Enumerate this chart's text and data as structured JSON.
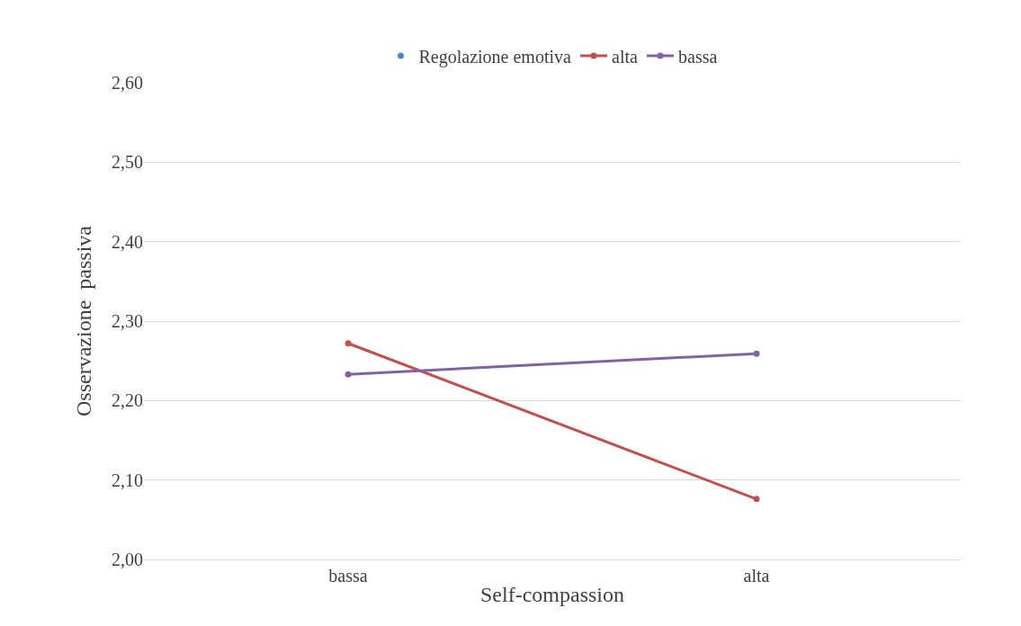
{
  "chart_data": {
    "type": "line",
    "xlabel": "Self-compassion",
    "ylabel": "Osservazione  passiva",
    "categories": [
      "bassa",
      "alta"
    ],
    "series": [
      {
        "name": "Regolazione emotiva",
        "color": "#4a86c5",
        "values": [
          null,
          null
        ]
      },
      {
        "name": "alta",
        "color": "#c0504d",
        "values": [
          2.272,
          2.076
        ]
      },
      {
        "name": "bassa",
        "color": "#8064a2",
        "values": [
          2.233,
          2.259
        ]
      }
    ],
    "ylim": [
      2.0,
      2.6
    ],
    "yticks": [
      {
        "value": 2.0,
        "label": "2,00"
      },
      {
        "value": 2.1,
        "label": "2,10"
      },
      {
        "value": 2.2,
        "label": "2,20"
      },
      {
        "value": 2.3,
        "label": "2,30"
      },
      {
        "value": 2.4,
        "label": "2,40"
      },
      {
        "value": 2.5,
        "label": "2,50"
      },
      {
        "value": 2.6,
        "label": "2,60"
      }
    ],
    "grid": "y",
    "legend": "top",
    "marker": "circle",
    "line_style": "solid"
  }
}
